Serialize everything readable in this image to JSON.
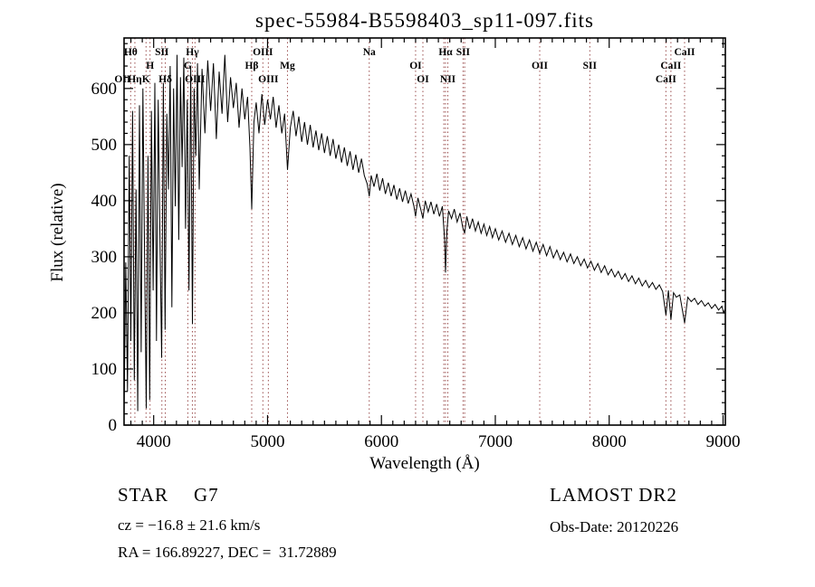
{
  "title": "spec-55984-B5598403_sp11-097.fits",
  "footer": {
    "class": "STAR",
    "subclass": "G7",
    "cz": "cz = −16.8 ± 21.6 km/s",
    "coords": "RA = 166.89227, DEC =  31.72889",
    "survey": "LAMOST DR2",
    "obs_date": "Obs-Date: 20120226"
  },
  "chart_data": {
    "type": "line",
    "title": "spec-55984-B5598403_sp11-097.fits",
    "xlabel": "Wavelength (Å)",
    "ylabel": "Flux (relative)",
    "xlim": [
      3740,
      9020
    ],
    "ylim": [
      0,
      690
    ],
    "x_ticks": [
      4000,
      5000,
      6000,
      7000,
      8000,
      9000
    ],
    "y_ticks": [
      0,
      100,
      200,
      300,
      400,
      500,
      600
    ],
    "x_minor_step": 100,
    "y_minor_step": 20,
    "grid": "off",
    "legend": "none",
    "line_color": "#000000",
    "spectral_line_color": "#9b4f4f",
    "spectral_lines": [
      {
        "label": "OII",
        "wl": 3727,
        "row": 3
      },
      {
        "label": "Hθ",
        "wl": 3798,
        "row": 1
      },
      {
        "label": "Hη",
        "wl": 3835,
        "row": 3
      },
      {
        "label": "K",
        "wl": 3933,
        "row": 3
      },
      {
        "label": "H",
        "wl": 3968,
        "row": 2
      },
      {
        "label": "SII",
        "wl": 4072,
        "row": 1
      },
      {
        "label": "Hδ",
        "wl": 4102,
        "row": 3
      },
      {
        "label": "G",
        "wl": 4300,
        "row": 2
      },
      {
        "label": "Hγ",
        "wl": 4340,
        "row": 1
      },
      {
        "label": "OIII",
        "wl": 4363,
        "row": 3
      },
      {
        "label": "Hβ",
        "wl": 4861,
        "row": 2
      },
      {
        "label": "OIII",
        "wl": 4959,
        "row": 1
      },
      {
        "label": "OIII",
        "wl": 5007,
        "row": 3
      },
      {
        "label": "Mg",
        "wl": 5175,
        "row": 2
      },
      {
        "label": "Na",
        "wl": 5893,
        "row": 1
      },
      {
        "label": "OI",
        "wl": 6300,
        "row": 2
      },
      {
        "label": "OI",
        "wl": 6364,
        "row": 3
      },
      {
        "label": "",
        "wl": 6548,
        "row": 0
      },
      {
        "label": "Hα",
        "wl": 6563,
        "row": 1
      },
      {
        "label": "NII",
        "wl": 6583,
        "row": 3
      },
      {
        "label": "SII",
        "wl": 6717,
        "row": 1
      },
      {
        "label": "",
        "wl": 6731,
        "row": 0
      },
      {
        "label": "OII",
        "wl": 7390,
        "row": 2
      },
      {
        "label": "SII",
        "wl": 7830,
        "row": 2
      },
      {
        "label": "CaII",
        "wl": 8498,
        "row": 3
      },
      {
        "label": "CaII",
        "wl": 8542,
        "row": 2
      },
      {
        "label": "CaII",
        "wl": 8662,
        "row": 1
      }
    ],
    "series": [
      {
        "name": "flux",
        "points": [
          [
            3740,
            20
          ],
          [
            3755,
            290
          ],
          [
            3770,
            60
          ],
          [
            3785,
            480
          ],
          [
            3800,
            150
          ],
          [
            3815,
            560
          ],
          [
            3830,
            80
          ],
          [
            3845,
            420
          ],
          [
            3860,
            25
          ],
          [
            3875,
            570
          ],
          [
            3890,
            130
          ],
          [
            3905,
            600
          ],
          [
            3920,
            310
          ],
          [
            3935,
            30
          ],
          [
            3950,
            480
          ],
          [
            3965,
            45
          ],
          [
            3980,
            560
          ],
          [
            3995,
            240
          ],
          [
            4010,
            610
          ],
          [
            4025,
            150
          ],
          [
            4040,
            580
          ],
          [
            4055,
            340
          ],
          [
            4070,
            120
          ],
          [
            4085,
            610
          ],
          [
            4100,
            170
          ],
          [
            4115,
            555
          ],
          [
            4130,
            420
          ],
          [
            4145,
            640
          ],
          [
            4160,
            210
          ],
          [
            4175,
            600
          ],
          [
            4190,
            390
          ],
          [
            4205,
            660
          ],
          [
            4220,
            330
          ],
          [
            4235,
            620
          ],
          [
            4250,
            460
          ],
          [
            4265,
            655
          ],
          [
            4280,
            350
          ],
          [
            4295,
            580
          ],
          [
            4310,
            240
          ],
          [
            4325,
            640
          ],
          [
            4340,
            180
          ],
          [
            4355,
            600
          ],
          [
            4370,
            480
          ],
          [
            4385,
            645
          ],
          [
            4400,
            420
          ],
          [
            4425,
            635
          ],
          [
            4450,
            520
          ],
          [
            4475,
            650
          ],
          [
            4500,
            560
          ],
          [
            4525,
            645
          ],
          [
            4550,
            510
          ],
          [
            4575,
            630
          ],
          [
            4600,
            555
          ],
          [
            4625,
            660
          ],
          [
            4650,
            540
          ],
          [
            4675,
            620
          ],
          [
            4700,
            565
          ],
          [
            4725,
            610
          ],
          [
            4750,
            530
          ],
          [
            4775,
            600
          ],
          [
            4800,
            545
          ],
          [
            4825,
            585
          ],
          [
            4845,
            495
          ],
          [
            4861,
            385
          ],
          [
            4880,
            540
          ],
          [
            4900,
            575
          ],
          [
            4925,
            520
          ],
          [
            4950,
            590
          ],
          [
            4975,
            535
          ],
          [
            5000,
            580
          ],
          [
            5025,
            545
          ],
          [
            5050,
            585
          ],
          [
            5075,
            530
          ],
          [
            5100,
            570
          ],
          [
            5125,
            520
          ],
          [
            5150,
            555
          ],
          [
            5175,
            455
          ],
          [
            5200,
            530
          ],
          [
            5225,
            560
          ],
          [
            5250,
            515
          ],
          [
            5275,
            550
          ],
          [
            5300,
            505
          ],
          [
            5325,
            540
          ],
          [
            5350,
            500
          ],
          [
            5375,
            535
          ],
          [
            5400,
            495
          ],
          [
            5425,
            525
          ],
          [
            5450,
            490
          ],
          [
            5475,
            520
          ],
          [
            5500,
            485
          ],
          [
            5525,
            515
          ],
          [
            5550,
            480
          ],
          [
            5575,
            510
          ],
          [
            5600,
            475
          ],
          [
            5625,
            500
          ],
          [
            5650,
            468
          ],
          [
            5675,
            495
          ],
          [
            5700,
            462
          ],
          [
            5725,
            488
          ],
          [
            5750,
            455
          ],
          [
            5775,
            482
          ],
          [
            5800,
            450
          ],
          [
            5825,
            475
          ],
          [
            5850,
            445
          ],
          [
            5875,
            430
          ],
          [
            5893,
            408
          ],
          [
            5910,
            445
          ],
          [
            5935,
            425
          ],
          [
            5960,
            448
          ],
          [
            5985,
            418
          ],
          [
            6010,
            440
          ],
          [
            6035,
            412
          ],
          [
            6060,
            432
          ],
          [
            6085,
            408
          ],
          [
            6110,
            428
          ],
          [
            6135,
            402
          ],
          [
            6160,
            422
          ],
          [
            6185,
            398
          ],
          [
            6210,
            418
          ],
          [
            6235,
            395
          ],
          [
            6260,
            412
          ],
          [
            6285,
            390
          ],
          [
            6300,
            372
          ],
          [
            6320,
            405
          ],
          [
            6345,
            385
          ],
          [
            6364,
            368
          ],
          [
            6385,
            400
          ],
          [
            6410,
            380
          ],
          [
            6435,
            398
          ],
          [
            6460,
            376
          ],
          [
            6485,
            394
          ],
          [
            6510,
            372
          ],
          [
            6535,
            390
          ],
          [
            6555,
            330
          ],
          [
            6563,
            272
          ],
          [
            6575,
            345
          ],
          [
            6590,
            382
          ],
          [
            6615,
            368
          ],
          [
            6640,
            385
          ],
          [
            6665,
            362
          ],
          [
            6690,
            378
          ],
          [
            6715,
            352
          ],
          [
            6731,
            342
          ],
          [
            6750,
            372
          ],
          [
            6775,
            350
          ],
          [
            6800,
            368
          ],
          [
            6825,
            346
          ],
          [
            6850,
            362
          ],
          [
            6875,
            342
          ],
          [
            6900,
            358
          ],
          [
            6925,
            338
          ],
          [
            6950,
            354
          ],
          [
            6975,
            334
          ],
          [
            7000,
            350
          ],
          [
            7030,
            330
          ],
          [
            7060,
            346
          ],
          [
            7090,
            326
          ],
          [
            7120,
            342
          ],
          [
            7150,
            322
          ],
          [
            7180,
            338
          ],
          [
            7210,
            318
          ],
          [
            7240,
            334
          ],
          [
            7270,
            314
          ],
          [
            7300,
            330
          ],
          [
            7330,
            310
          ],
          [
            7360,
            326
          ],
          [
            7390,
            306
          ],
          [
            7420,
            322
          ],
          [
            7450,
            302
          ],
          [
            7480,
            318
          ],
          [
            7510,
            298
          ],
          [
            7540,
            312
          ],
          [
            7570,
            295
          ],
          [
            7600,
            308
          ],
          [
            7630,
            291
          ],
          [
            7660,
            305
          ],
          [
            7690,
            288
          ],
          [
            7720,
            300
          ],
          [
            7750,
            284
          ],
          [
            7780,
            296
          ],
          [
            7810,
            280
          ],
          [
            7840,
            292
          ],
          [
            7870,
            276
          ],
          [
            7900,
            288
          ],
          [
            7930,
            272
          ],
          [
            7960,
            284
          ],
          [
            7990,
            268
          ],
          [
            8020,
            278
          ],
          [
            8050,
            264
          ],
          [
            8080,
            274
          ],
          [
            8110,
            260
          ],
          [
            8140,
            270
          ],
          [
            8170,
            256
          ],
          [
            8200,
            266
          ],
          [
            8230,
            252
          ],
          [
            8260,
            262
          ],
          [
            8290,
            248
          ],
          [
            8320,
            258
          ],
          [
            8350,
            245
          ],
          [
            8380,
            254
          ],
          [
            8410,
            242
          ],
          [
            8440,
            250
          ],
          [
            8470,
            238
          ],
          [
            8498,
            196
          ],
          [
            8520,
            240
          ],
          [
            8542,
            188
          ],
          [
            8565,
            236
          ],
          [
            8590,
            228
          ],
          [
            8620,
            232
          ],
          [
            8662,
            182
          ],
          [
            8690,
            228
          ],
          [
            8720,
            220
          ],
          [
            8750,
            226
          ],
          [
            8780,
            215
          ],
          [
            8810,
            222
          ],
          [
            8840,
            212
          ],
          [
            8870,
            218
          ],
          [
            8900,
            208
          ],
          [
            8930,
            215
          ],
          [
            8960,
            205
          ],
          [
            8990,
            212
          ],
          [
            9005,
            200
          ],
          [
            9020,
            208
          ],
          [
            9040,
            140
          ],
          [
            9050,
            22
          ]
        ]
      }
    ]
  }
}
